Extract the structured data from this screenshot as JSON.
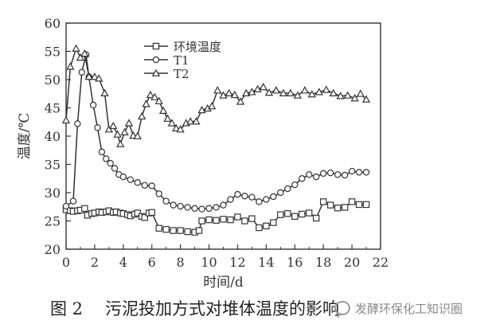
{
  "chart_data": {
    "type": "line",
    "ylabel": "温度/℃",
    "xlabel": "时间/d",
    "xlim": [
      0,
      22
    ],
    "ylim": [
      20,
      60
    ],
    "x_ticks": [
      "0",
      "2",
      "4",
      "6",
      "8",
      "10",
      "12",
      "14",
      "16",
      "18",
      "20",
      "22"
    ],
    "y_ticks": [
      "20",
      "25",
      "30",
      "35",
      "40",
      "45",
      "50",
      "55",
      "60"
    ],
    "grid": false,
    "legend_position": "top-center",
    "series": [
      {
        "name": "环境温度",
        "marker": "square",
        "points": [
          [
            0,
            27
          ],
          [
            0.3,
            26.8
          ],
          [
            0.5,
            26.7
          ],
          [
            0.8,
            26.8
          ],
          [
            1,
            26.9
          ],
          [
            1.3,
            27.2
          ],
          [
            1.5,
            26
          ],
          [
            1.8,
            26.3
          ],
          [
            2,
            26.4
          ],
          [
            2.3,
            26.6
          ],
          [
            2.5,
            26.5
          ],
          [
            2.8,
            26.6
          ],
          [
            3,
            26.8
          ],
          [
            3.3,
            26.5
          ],
          [
            3.5,
            26.6
          ],
          [
            3.8,
            26.4
          ],
          [
            4,
            26.3
          ],
          [
            4.3,
            26.1
          ],
          [
            4.5,
            25.9
          ],
          [
            4.8,
            26.2
          ],
          [
            5,
            26.4
          ],
          [
            5.3,
            25.8
          ],
          [
            5.5,
            25.6
          ],
          [
            5.8,
            26.4
          ],
          [
            6,
            26.5
          ],
          [
            6.5,
            23.7
          ],
          [
            7,
            23.5
          ],
          [
            7.5,
            23.3
          ],
          [
            8,
            23.3
          ],
          [
            8.5,
            23.1
          ],
          [
            9,
            23
          ],
          [
            9.3,
            23.3
          ],
          [
            9.5,
            25
          ],
          [
            10,
            25.2
          ],
          [
            10.5,
            25.1
          ],
          [
            11,
            25.3
          ],
          [
            11.5,
            25.2
          ],
          [
            12,
            25.7
          ],
          [
            12.5,
            25
          ],
          [
            13,
            25.4
          ],
          [
            13.5,
            23.8
          ],
          [
            14,
            24.1
          ],
          [
            14.5,
            24.7
          ],
          [
            15,
            26.1
          ],
          [
            15.5,
            26.3
          ],
          [
            16,
            25.8
          ],
          [
            16.5,
            26.2
          ],
          [
            17,
            26.4
          ],
          [
            17.5,
            25.5
          ],
          [
            18,
            28.4
          ],
          [
            18.5,
            27.8
          ],
          [
            19,
            27.3
          ],
          [
            19.5,
            27.4
          ],
          [
            20,
            28.4
          ],
          [
            20.5,
            27.9
          ],
          [
            21,
            27.9
          ]
        ]
      },
      {
        "name": "T1",
        "marker": "circle",
        "points": [
          [
            0,
            27.6
          ],
          [
            0.5,
            28.5
          ],
          [
            0.8,
            42.2
          ],
          [
            1.1,
            51.3
          ],
          [
            1.4,
            54.4
          ],
          [
            1.6,
            50.5
          ],
          [
            1.9,
            45.5
          ],
          [
            2.2,
            41.5
          ],
          [
            2.5,
            37.2
          ],
          [
            2.8,
            36
          ],
          [
            3.1,
            35.2
          ],
          [
            3.4,
            34.3
          ],
          [
            3.7,
            33.2
          ],
          [
            4,
            32.8
          ],
          [
            4.5,
            32.3
          ],
          [
            5,
            31.8
          ],
          [
            5.5,
            31.3
          ],
          [
            6,
            31.2
          ],
          [
            6.5,
            29.8
          ],
          [
            7,
            28.5
          ],
          [
            7.5,
            27.8
          ],
          [
            8,
            27.6
          ],
          [
            8.5,
            27.4
          ],
          [
            9,
            27.2
          ],
          [
            9.5,
            27.1
          ],
          [
            10,
            27.2
          ],
          [
            10.5,
            27.4
          ],
          [
            11,
            27.8
          ],
          [
            11.5,
            28.8
          ],
          [
            12,
            29.7
          ],
          [
            12.5,
            29.4
          ],
          [
            13,
            29.2
          ],
          [
            13.5,
            28.4
          ],
          [
            14,
            28.8
          ],
          [
            14.5,
            29.3
          ],
          [
            15,
            30
          ],
          [
            15.5,
            30.7
          ],
          [
            16,
            31.4
          ],
          [
            16.5,
            32.5
          ],
          [
            17,
            33.2
          ],
          [
            17.5,
            32.8
          ],
          [
            18,
            33.4
          ],
          [
            18.5,
            33.5
          ],
          [
            19,
            33.2
          ],
          [
            19.5,
            33.1
          ],
          [
            20,
            33.8
          ],
          [
            20.5,
            33.6
          ],
          [
            21,
            33.6
          ]
        ]
      },
      {
        "name": "T2",
        "marker": "triangle",
        "points": [
          [
            0,
            42.8
          ],
          [
            0.3,
            52.3
          ],
          [
            0.7,
            55.5
          ],
          [
            1,
            53.9
          ],
          [
            1.3,
            54.6
          ],
          [
            1.6,
            50.5
          ],
          [
            2,
            50.5
          ],
          [
            2.3,
            50.2
          ],
          [
            2.7,
            47.6
          ],
          [
            3,
            41.2
          ],
          [
            3.3,
            41.8
          ],
          [
            3.6,
            40.3
          ],
          [
            3.8,
            38.6
          ],
          [
            4.1,
            40.7
          ],
          [
            4.4,
            42.3
          ],
          [
            4.7,
            40.1
          ],
          [
            5,
            40
          ],
          [
            5.3,
            43.5
          ],
          [
            5.6,
            45.7
          ],
          [
            5.9,
            47.3
          ],
          [
            6.2,
            46.9
          ],
          [
            6.5,
            46.2
          ],
          [
            6.8,
            44.5
          ],
          [
            7.1,
            43.1
          ],
          [
            7.4,
            42.3
          ],
          [
            7.7,
            41.4
          ],
          [
            8,
            41.2
          ],
          [
            8.4,
            42.3
          ],
          [
            8.7,
            42.6
          ],
          [
            9.1,
            42.6
          ],
          [
            9.5,
            44.6
          ],
          [
            9.9,
            44.9
          ],
          [
            10.2,
            45.3
          ],
          [
            10.6,
            48.1
          ],
          [
            11,
            47.2
          ],
          [
            11.4,
            47.6
          ],
          [
            11.8,
            47.3
          ],
          [
            12.2,
            46.1
          ],
          [
            12.6,
            47.6
          ],
          [
            13,
            47.8
          ],
          [
            13.4,
            48.3
          ],
          [
            13.8,
            48.7
          ],
          [
            14.2,
            47.7
          ],
          [
            14.7,
            48.1
          ],
          [
            15.2,
            47.6
          ],
          [
            15.7,
            47.6
          ],
          [
            16.2,
            47.2
          ],
          [
            16.7,
            48.1
          ],
          [
            17.2,
            47.4
          ],
          [
            17.7,
            47.8
          ],
          [
            18.2,
            48.2
          ],
          [
            18.7,
            47.6
          ],
          [
            19.2,
            47.1
          ],
          [
            19.7,
            47.2
          ],
          [
            20.2,
            46.7
          ],
          [
            20.6,
            47.5
          ],
          [
            21,
            46.5
          ]
        ]
      }
    ]
  },
  "caption": {
    "figure_number": "图 2",
    "text": "污泥投加方式对堆体温度的影响"
  },
  "watermark": {
    "text": "发酵环保化工知识圈",
    "icon": "wechat-icon"
  }
}
